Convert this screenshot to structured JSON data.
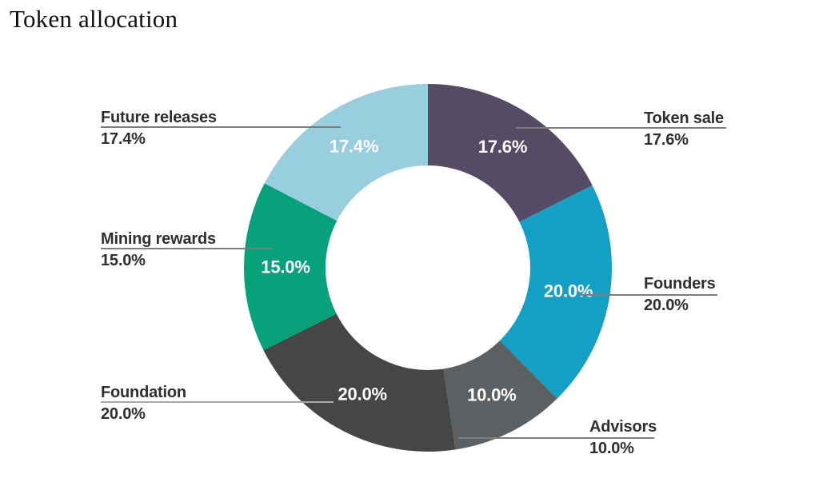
{
  "title": "Token allocation",
  "chart_data": {
    "type": "pie",
    "subtype": "donut",
    "title": "Token allocation",
    "start_angle_deg": 0,
    "direction": "clockwise",
    "inner_label_color": "#FFFFFF",
    "legend_position": "outside-callouts",
    "segments": [
      {
        "label": "Token sale",
        "value": 17.6,
        "display": "17.6%",
        "color": "#564B64",
        "callout_side": "right"
      },
      {
        "label": "Founders",
        "value": 20.0,
        "display": "20.0%",
        "color": "#14A0C4",
        "callout_side": "right"
      },
      {
        "label": "Advisors",
        "value": 10.0,
        "display": "10.0%",
        "color": "#5D6063",
        "callout_side": "right"
      },
      {
        "label": "Foundation",
        "value": 20.0,
        "display": "20.0%",
        "color": "#474647",
        "callout_side": "left"
      },
      {
        "label": "Mining rewards",
        "value": 15.0,
        "display": "15.0%",
        "color": "#07A17B",
        "callout_side": "left"
      },
      {
        "label": "Future releases",
        "value": 17.4,
        "display": "17.4%",
        "color": "#99CEDF",
        "callout_side": "left"
      }
    ]
  }
}
